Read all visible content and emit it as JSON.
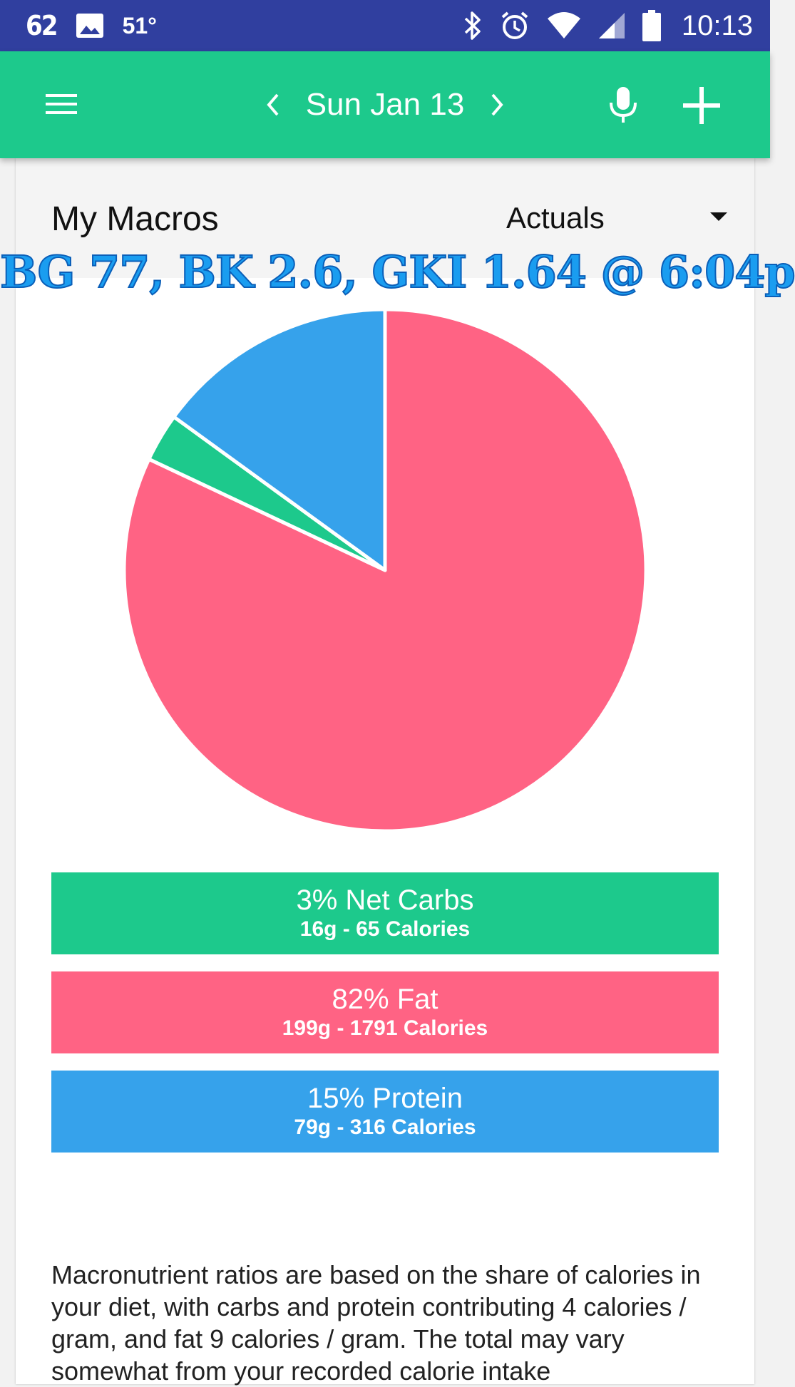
{
  "status_bar": {
    "notification_number": "62",
    "temperature": "51°",
    "time": "10:13"
  },
  "app_bar": {
    "date": "Sun Jan 13",
    "icons": [
      "menu-icon",
      "chevron-left-icon",
      "chevron-right-icon",
      "mic-icon",
      "plus-icon"
    ]
  },
  "card": {
    "title": "My Macros",
    "dropdown_value": "Actuals"
  },
  "overlay": {
    "text": "BG 77, BK 2.6, GKI 1.64 @ 6:04p"
  },
  "chart_data": {
    "type": "pie",
    "slices": [
      {
        "label": "Fat",
        "percent": 82,
        "color": "#ff6384"
      },
      {
        "label": "Net Carbs",
        "percent": 3,
        "color": "#1dc98c"
      },
      {
        "label": "Protein",
        "percent": 15,
        "color": "#36a2eb"
      }
    ]
  },
  "macros": [
    {
      "main": "3% Net Carbs",
      "sub": "16g - 65 Calories",
      "color": "#1dc98c"
    },
    {
      "main": "82% Fat",
      "sub": "199g - 1791 Calories",
      "color": "#ff6384"
    },
    {
      "main": "15% Protein",
      "sub": "79g - 316 Calories",
      "color": "#36a2eb"
    }
  ],
  "description": "Macronutrient ratios are based on the share of calories in your diet, with carbs and protein contributing 4 calories / gram, and fat 9 calories / gram. The total may vary somewhat from your recorded calorie intake"
}
